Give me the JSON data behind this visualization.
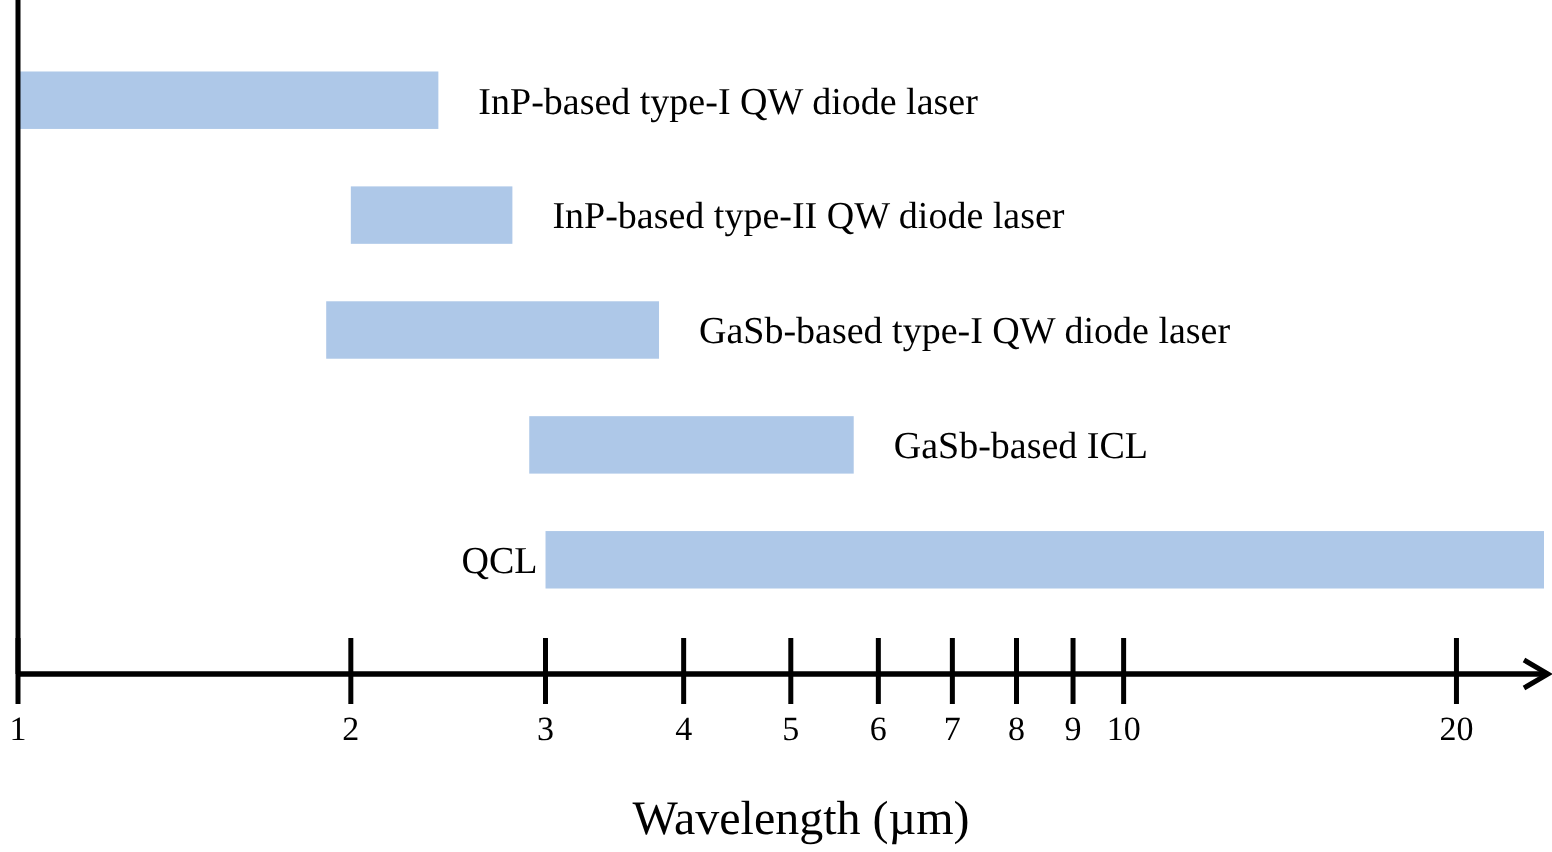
{
  "chart_data": {
    "type": "bar",
    "orientation": "horizontal",
    "log": "x",
    "xlabel": "Wavelength (µm)",
    "categories": [
      "InP-based type-I QW diode laser",
      "InP-based type-II QW diode laser",
      "GaSb-based type-I QW diode laser",
      "GaSb-based ICL",
      "QCL"
    ],
    "base": [
      1,
      2.0,
      1.9,
      2.9,
      3.0
    ],
    "values": [
      1.4,
      0.8,
      1.9,
      2.8,
      21
    ],
    "color": "#aec8e8",
    "xlim": [
      1,
      24
    ],
    "xticks": [
      1,
      2,
      3,
      4,
      5,
      6,
      7,
      8,
      9,
      10,
      20
    ],
    "grid": false
  }
}
